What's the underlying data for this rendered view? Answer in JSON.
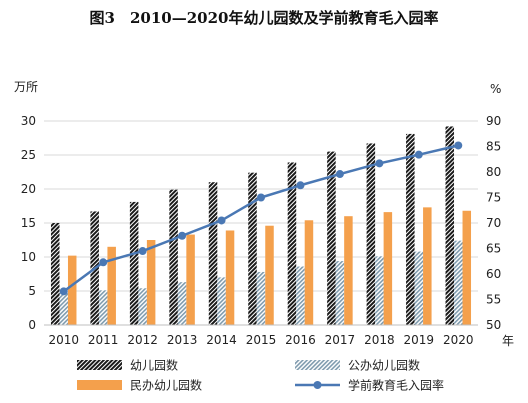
{
  "chart_data": {
    "type": "bar",
    "title": "图3　2010—2020年幼儿园数及学前教育毛入园率",
    "categories": [
      "2010",
      "2011",
      "2012",
      "2013",
      "2014",
      "2015",
      "2016",
      "2017",
      "2018",
      "2019",
      "2020"
    ],
    "xlabel": "年",
    "ylabel": "万所",
    "y2label": "%",
    "ylim": [
      0,
      30
    ],
    "y2lim": [
      50,
      90
    ],
    "yticks": [
      "0",
      "5",
      "10",
      "15",
      "20",
      "25",
      "30"
    ],
    "y2ticks": [
      "50",
      "55",
      "60",
      "65",
      "70",
      "75",
      "80",
      "85",
      "90"
    ],
    "series": [
      {
        "name": "幼儿园数",
        "type": "bar",
        "axis": "left",
        "color": "#1a1a1a",
        "pattern": "hatch-dark",
        "values": [
          15.0,
          16.7,
          18.1,
          19.9,
          21.0,
          22.4,
          23.9,
          25.5,
          26.7,
          28.1,
          29.2
        ]
      },
      {
        "name": "公办幼儿园数",
        "type": "bar",
        "axis": "left",
        "color": "#7f9bae",
        "pattern": "hatch-blue",
        "values": [
          4.8,
          5.1,
          5.4,
          6.3,
          7.0,
          7.8,
          8.6,
          9.4,
          10.1,
          10.8,
          12.4
        ]
      },
      {
        "name": "民办幼儿园数",
        "type": "bar",
        "axis": "left",
        "color": "#f4a04c",
        "pattern": "solid",
        "values": [
          10.2,
          11.5,
          12.5,
          13.3,
          13.9,
          14.6,
          15.4,
          16.0,
          16.6,
          17.3,
          16.8
        ]
      },
      {
        "name": "学前教育毛入园率",
        "type": "line",
        "axis": "right",
        "color": "#4a78b4",
        "marker": "circle",
        "values": [
          56.6,
          62.3,
          64.5,
          67.5,
          70.5,
          75.0,
          77.4,
          79.6,
          81.7,
          83.4,
          85.2
        ]
      }
    ],
    "legend": {
      "position": "bottom"
    }
  }
}
